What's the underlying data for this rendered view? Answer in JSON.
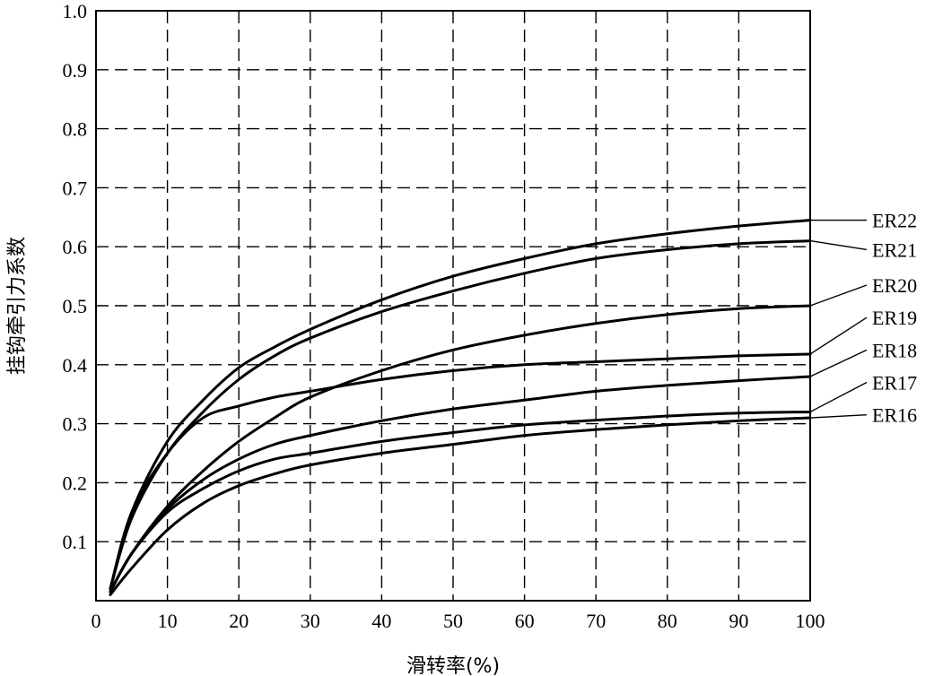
{
  "chart_data": {
    "type": "line",
    "xlabel": "滑转率(%)",
    "ylabel": "挂钩牵引力系数",
    "xlim": [
      0,
      100
    ],
    "ylim": [
      0,
      1.0
    ],
    "x_ticks": [
      "0",
      "10",
      "20",
      "30",
      "40",
      "50",
      "60",
      "70",
      "80",
      "90",
      "100"
    ],
    "y_ticks": [
      "0.1",
      "0.2",
      "0.3",
      "0.4",
      "0.5",
      "0.6",
      "0.7",
      "0.8",
      "0.9",
      "1.0"
    ],
    "grid": true,
    "legend_placement": "right",
    "series": [
      {
        "name": "ER22",
        "x": [
          2,
          5,
          10,
          15,
          20,
          25,
          30,
          40,
          50,
          60,
          70,
          80,
          90,
          100
        ],
        "y": [
          0.02,
          0.15,
          0.27,
          0.34,
          0.395,
          0.43,
          0.46,
          0.51,
          0.55,
          0.58,
          0.605,
          0.622,
          0.635,
          0.645
        ]
      },
      {
        "name": "ER21",
        "x": [
          2,
          5,
          10,
          15,
          20,
          25,
          30,
          40,
          50,
          60,
          70,
          80,
          90,
          100
        ],
        "y": [
          0.02,
          0.14,
          0.25,
          0.32,
          0.375,
          0.415,
          0.445,
          0.49,
          0.525,
          0.555,
          0.58,
          0.595,
          0.605,
          0.61
        ]
      },
      {
        "name": "ER20",
        "x": [
          2,
          5,
          10,
          15,
          20,
          25,
          30,
          40,
          50,
          60,
          70,
          80,
          90,
          100
        ],
        "y": [
          0.015,
          0.08,
          0.16,
          0.22,
          0.27,
          0.31,
          0.345,
          0.39,
          0.425,
          0.45,
          0.47,
          0.485,
          0.495,
          0.5
        ]
      },
      {
        "name": "ER19",
        "x": [
          2,
          5,
          10,
          15,
          20,
          25,
          30,
          40,
          50,
          60,
          70,
          80,
          90,
          100
        ],
        "y": [
          0.02,
          0.15,
          0.25,
          0.31,
          0.33,
          0.345,
          0.355,
          0.375,
          0.39,
          0.4,
          0.405,
          0.41,
          0.415,
          0.418
        ]
      },
      {
        "name": "ER18",
        "x": [
          2,
          5,
          10,
          15,
          20,
          25,
          30,
          40,
          50,
          60,
          70,
          80,
          90,
          100
        ],
        "y": [
          0.015,
          0.08,
          0.155,
          0.205,
          0.24,
          0.265,
          0.28,
          0.305,
          0.325,
          0.34,
          0.355,
          0.365,
          0.373,
          0.38
        ]
      },
      {
        "name": "ER17",
        "x": [
          2,
          5,
          10,
          15,
          20,
          25,
          30,
          40,
          50,
          60,
          70,
          80,
          90,
          100
        ],
        "y": [
          0.015,
          0.08,
          0.15,
          0.19,
          0.22,
          0.24,
          0.25,
          0.27,
          0.285,
          0.298,
          0.306,
          0.313,
          0.318,
          0.32
        ]
      },
      {
        "name": "ER16",
        "x": [
          2,
          5,
          10,
          15,
          20,
          25,
          30,
          40,
          50,
          60,
          70,
          80,
          90,
          100
        ],
        "y": [
          0.01,
          0.055,
          0.12,
          0.165,
          0.195,
          0.215,
          0.23,
          0.25,
          0.265,
          0.28,
          0.29,
          0.298,
          0.305,
          0.31
        ]
      }
    ],
    "legend_label_y": [
      0.645,
      0.595,
      0.535,
      0.48,
      0.425,
      0.37,
      0.315
    ]
  }
}
